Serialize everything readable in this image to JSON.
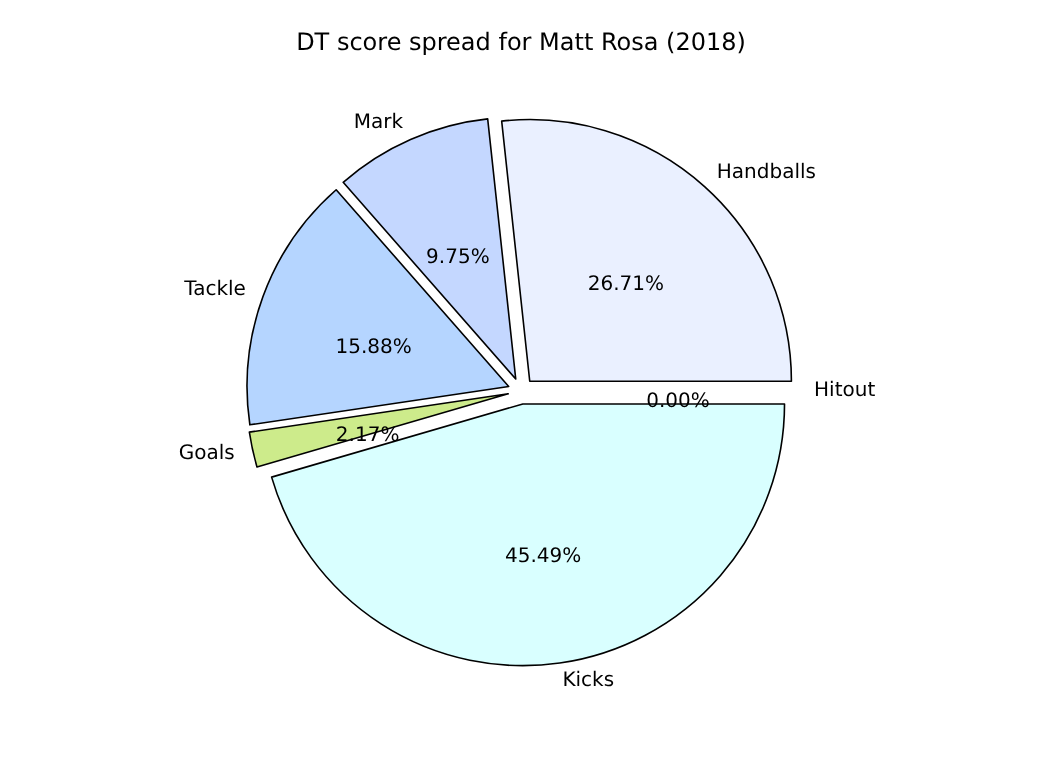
{
  "chart_data": {
    "type": "pie",
    "title": "DT score spread for Matt Rosa (2018)",
    "categories": [
      "Handballs",
      "Mark",
      "Tackle",
      "Goals",
      "Kicks",
      "Hitout"
    ],
    "values": [
      26.71,
      9.75,
      15.88,
      2.17,
      45.49,
      0.0
    ],
    "colors": [
      "#eaf0ff",
      "#c4d7ff",
      "#b5d5ff",
      "#cdeb8b",
      "#d9ffff",
      "#e0e0e0"
    ],
    "value_labels": [
      "26.71%",
      "9.75%",
      "15.88%",
      "2.17%",
      "45.49%",
      "0.00%"
    ]
  }
}
